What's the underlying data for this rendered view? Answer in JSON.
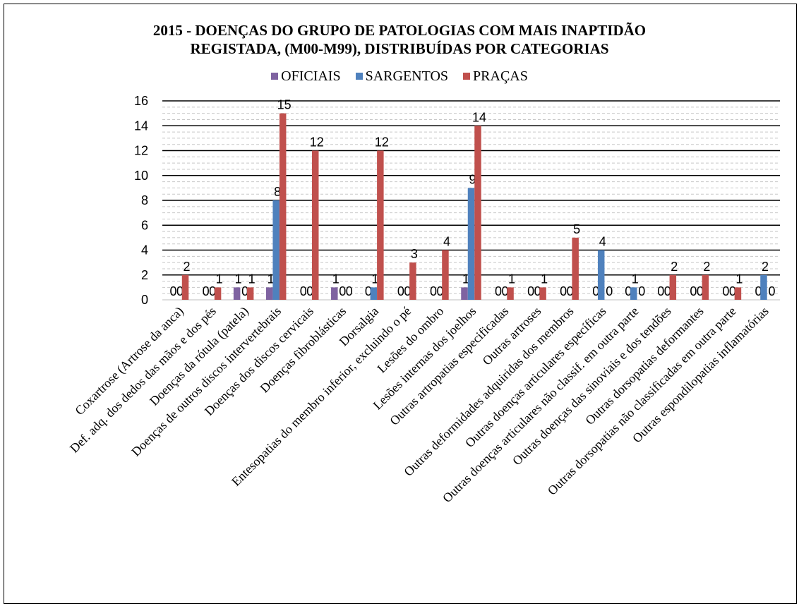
{
  "chart_data": {
    "type": "bar",
    "title": "2015 - DOENÇAS DO GRUPO DE PATOLOGIAS COM MAIS INAPTIDÃO REGISTADA, (M00-M99), DISTRIBUÍDAS POR CATEGORIAS",
    "title_lines": [
      "2015 - DOENÇAS DO GRUPO DE PATOLOGIAS COM MAIS INAPTIDÃO",
      "REGISTADA, (M00-M99), DISTRIBUÍDAS POR CATEGORIAS"
    ],
    "xlabel": "",
    "ylabel": "",
    "ylim": [
      0,
      16
    ],
    "yticks": [
      "0",
      "2",
      "4",
      "6",
      "8",
      "10",
      "12",
      "14",
      "16"
    ],
    "grid": true,
    "legend_position": "top",
    "categories": [
      "Coxartrose (Artrose da anca)",
      "Def. adq. dos dedos das mãos e dos pés",
      "Doenças da rótula (patela)",
      "Doenças de outros discos intervertebrais",
      "Doenças dos discos cervicais",
      "Doenças fibroblásticas",
      "Dorsalgia",
      "Entesopatias do membro inferior, excluindo o pé",
      "Lesões do ombro",
      "Lesões internas dos joelhos",
      "Outras artropatias especificadas",
      "Outras artroses",
      "Outras deformidades adquiridas dos membros",
      "Outras doenças articulares específicas",
      "Outras doenças articulares não classif. em outra parte",
      "Outras doenças das sinoviais e dos tendões",
      "Outras dorsopatias deformantes",
      "Outras dorsopatias não classificadas em outra parte",
      "Outras espondilopatias inflamatórias"
    ],
    "series": [
      {
        "name": "OFICIAIS",
        "color": "#7F63A1",
        "values": [
          0,
          0,
          1,
          1,
          0,
          1,
          0,
          0,
          0,
          1,
          0,
          0,
          0,
          0,
          0,
          0,
          0,
          0,
          0
        ]
      },
      {
        "name": "SARGENTOS",
        "color": "#4F81BD",
        "values": [
          0,
          0,
          0,
          8,
          0,
          0,
          1,
          0,
          0,
          9,
          0,
          0,
          0,
          4,
          1,
          0,
          0,
          0,
          2
        ]
      },
      {
        "name": "PRAÇAS",
        "color": "#C0504D",
        "values": [
          2,
          1,
          1,
          15,
          12,
          0,
          12,
          3,
          4,
          14,
          1,
          1,
          5,
          0,
          0,
          2,
          2,
          1,
          0
        ]
      }
    ],
    "data_labels": true
  }
}
